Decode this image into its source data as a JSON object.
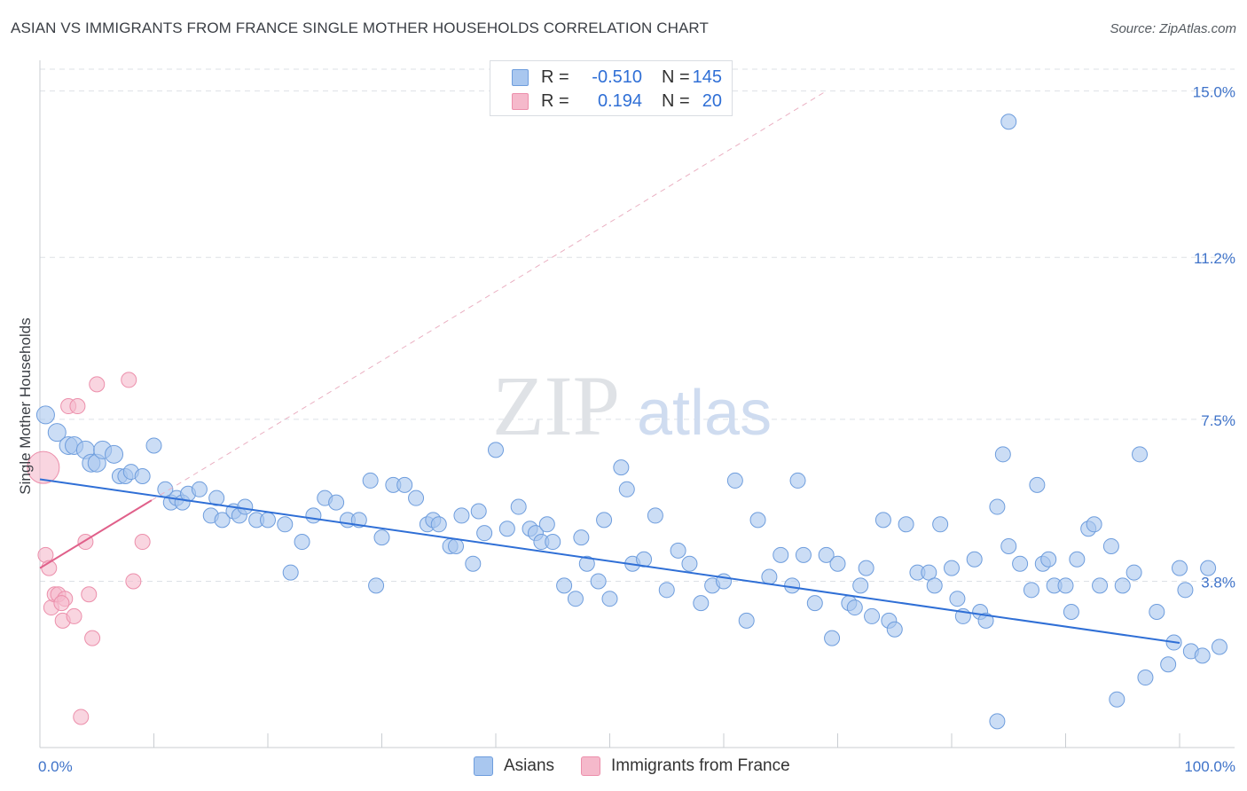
{
  "title": "ASIAN VS IMMIGRANTS FROM FRANCE SINGLE MOTHER HOUSEHOLDS CORRELATION CHART",
  "source": "Source: ZipAtlas.com",
  "watermark": {
    "zip": "ZIP",
    "atlas": "atlas"
  },
  "legend": {
    "rows": [
      {
        "r_label": "R =",
        "r_value": "-0.510",
        "n_label": "N =",
        "n_value": "145"
      },
      {
        "r_label": "R =",
        "r_value": "0.194",
        "n_label": "N =",
        "n_value": "20"
      }
    ]
  },
  "bottom_legend": {
    "asians": "Asians",
    "france": "Immigrants from France"
  },
  "colors": {
    "asian_fill": "#a9c7ef",
    "asian_stroke": "#6e9ddd",
    "asian_line": "#2f6fd6",
    "france_fill": "#f5b9cb",
    "france_stroke": "#ec8fab",
    "france_line": "#e0608a",
    "grid": "#dde1e6",
    "axis_text": "#3f73c9"
  },
  "chart_data": {
    "type": "scatter",
    "title": "ASIAN VS IMMIGRANTS FROM FRANCE SINGLE MOTHER HOUSEHOLDS CORRELATION CHART",
    "xlabel": "",
    "ylabel": "Single Mother Households",
    "x_tick_labels": [
      "0.0%",
      "100.0%"
    ],
    "y_tick_labels": [
      "3.8%",
      "7.5%",
      "11.2%",
      "15.0%"
    ],
    "y_ticks": [
      3.8,
      7.5,
      11.2,
      15.0
    ],
    "xlim": [
      0,
      100
    ],
    "ylim": [
      0,
      15.5
    ],
    "series": [
      {
        "name": "Asians",
        "r": -0.51,
        "n": 145,
        "trend": {
          "x": [
            0,
            100
          ],
          "y": [
            6.13,
            2.39
          ]
        },
        "points": [
          [
            0.5,
            7.6
          ],
          [
            1.5,
            7.2
          ],
          [
            2.5,
            6.9
          ],
          [
            3.0,
            6.9
          ],
          [
            4.0,
            6.8
          ],
          [
            4.5,
            6.5
          ],
          [
            5.0,
            6.5
          ],
          [
            5.5,
            6.8
          ],
          [
            6.5,
            6.7
          ],
          [
            7.0,
            6.2
          ],
          [
            7.5,
            6.2
          ],
          [
            8.0,
            6.3
          ],
          [
            9.0,
            6.2
          ],
          [
            10.0,
            6.9
          ],
          [
            11.0,
            5.9
          ],
          [
            11.5,
            5.6
          ],
          [
            12.0,
            5.7
          ],
          [
            12.5,
            5.6
          ],
          [
            13.0,
            5.8
          ],
          [
            14.0,
            5.9
          ],
          [
            15.0,
            5.3
          ],
          [
            15.5,
            5.7
          ],
          [
            16.0,
            5.2
          ],
          [
            17.0,
            5.4
          ],
          [
            17.5,
            5.3
          ],
          [
            18.0,
            5.5
          ],
          [
            19.0,
            5.2
          ],
          [
            20.0,
            5.2
          ],
          [
            21.5,
            5.1
          ],
          [
            22.0,
            4.0
          ],
          [
            23.0,
            4.7
          ],
          [
            24.0,
            5.3
          ],
          [
            25.0,
            5.7
          ],
          [
            26.0,
            5.6
          ],
          [
            27.0,
            5.2
          ],
          [
            28.0,
            5.2
          ],
          [
            29.0,
            6.1
          ],
          [
            29.5,
            3.7
          ],
          [
            30.0,
            4.8
          ],
          [
            31.0,
            6.0
          ],
          [
            32.0,
            6.0
          ],
          [
            33.0,
            5.7
          ],
          [
            34.0,
            5.1
          ],
          [
            34.5,
            5.2
          ],
          [
            35.0,
            5.1
          ],
          [
            36.0,
            4.6
          ],
          [
            36.5,
            4.6
          ],
          [
            37.0,
            5.3
          ],
          [
            38.0,
            4.2
          ],
          [
            38.5,
            5.4
          ],
          [
            39.0,
            4.9
          ],
          [
            40.0,
            6.8
          ],
          [
            41.0,
            5.0
          ],
          [
            42.0,
            5.5
          ],
          [
            43.0,
            5.0
          ],
          [
            43.5,
            4.9
          ],
          [
            44.0,
            4.7
          ],
          [
            44.5,
            5.1
          ],
          [
            45.0,
            4.7
          ],
          [
            46.0,
            3.7
          ],
          [
            47.0,
            3.4
          ],
          [
            47.5,
            4.8
          ],
          [
            48.0,
            4.2
          ],
          [
            49.0,
            3.8
          ],
          [
            49.5,
            5.2
          ],
          [
            50.0,
            3.4
          ],
          [
            51.0,
            6.4
          ],
          [
            51.5,
            5.9
          ],
          [
            52.0,
            4.2
          ],
          [
            53.0,
            4.3
          ],
          [
            54.0,
            5.3
          ],
          [
            55.0,
            3.6
          ],
          [
            56.0,
            4.5
          ],
          [
            57.0,
            4.2
          ],
          [
            58.0,
            3.3
          ],
          [
            59.0,
            3.7
          ],
          [
            60.0,
            3.8
          ],
          [
            61.0,
            6.1
          ],
          [
            62.0,
            2.9
          ],
          [
            63.0,
            5.2
          ],
          [
            64.0,
            3.9
          ],
          [
            65.0,
            4.4
          ],
          [
            66.0,
            3.7
          ],
          [
            66.5,
            6.1
          ],
          [
            67.0,
            4.4
          ],
          [
            68.0,
            3.3
          ],
          [
            69.0,
            4.4
          ],
          [
            69.5,
            2.5
          ],
          [
            70.0,
            4.2
          ],
          [
            71.0,
            3.3
          ],
          [
            71.5,
            3.2
          ],
          [
            72.0,
            3.7
          ],
          [
            72.5,
            4.1
          ],
          [
            73.0,
            3.0
          ],
          [
            74.0,
            5.2
          ],
          [
            74.5,
            2.9
          ],
          [
            75.0,
            2.7
          ],
          [
            76.0,
            5.1
          ],
          [
            77.0,
            4.0
          ],
          [
            78.0,
            4.0
          ],
          [
            78.5,
            3.7
          ],
          [
            79.0,
            5.1
          ],
          [
            80.0,
            4.1
          ],
          [
            80.5,
            3.4
          ],
          [
            81.0,
            3.0
          ],
          [
            82.0,
            4.3
          ],
          [
            82.5,
            3.1
          ],
          [
            83.0,
            2.9
          ],
          [
            84.0,
            5.5
          ],
          [
            84.5,
            6.7
          ],
          [
            85.0,
            4.6
          ],
          [
            86.0,
            4.2
          ],
          [
            87.0,
            3.6
          ],
          [
            87.5,
            6.0
          ],
          [
            88.0,
            4.2
          ],
          [
            88.5,
            4.3
          ],
          [
            89.0,
            3.7
          ],
          [
            90.0,
            3.7
          ],
          [
            90.5,
            3.1
          ],
          [
            91.0,
            4.3
          ],
          [
            92.0,
            5.0
          ],
          [
            92.5,
            5.1
          ],
          [
            93.0,
            3.7
          ],
          [
            94.0,
            4.6
          ],
          [
            94.5,
            1.1
          ],
          [
            95.0,
            3.7
          ],
          [
            96.0,
            4.0
          ],
          [
            96.5,
            6.7
          ],
          [
            97.0,
            1.6
          ],
          [
            98.0,
            3.1
          ],
          [
            99.0,
            1.9
          ],
          [
            99.5,
            2.4
          ],
          [
            100.0,
            4.1
          ],
          [
            100.5,
            3.6
          ],
          [
            101.0,
            2.2
          ],
          [
            102.0,
            2.1
          ],
          [
            102.5,
            4.1
          ],
          [
            103.5,
            2.3
          ],
          [
            84.0,
            0.6
          ],
          [
            85.0,
            14.3
          ]
        ]
      },
      {
        "name": "Immigrants from France",
        "r": 0.194,
        "n": 20,
        "trend": {
          "x": [
            0,
            9.8
          ],
          "y": [
            4.1,
            5.65
          ]
        },
        "points": [
          [
            0.3,
            6.4
          ],
          [
            0.5,
            4.4
          ],
          [
            0.8,
            4.1
          ],
          [
            1.0,
            3.2
          ],
          [
            1.3,
            3.5
          ],
          [
            1.6,
            3.5
          ],
          [
            2.0,
            2.9
          ],
          [
            2.2,
            3.4
          ],
          [
            2.5,
            7.8
          ],
          [
            3.0,
            3.0
          ],
          [
            3.3,
            7.8
          ],
          [
            3.6,
            0.7
          ],
          [
            4.0,
            4.7
          ],
          [
            4.3,
            3.5
          ],
          [
            4.6,
            2.5
          ],
          [
            5.0,
            8.3
          ],
          [
            7.8,
            8.4
          ],
          [
            8.2,
            3.8
          ],
          [
            9.0,
            4.7
          ],
          [
            1.9,
            3.3
          ]
        ]
      }
    ]
  }
}
